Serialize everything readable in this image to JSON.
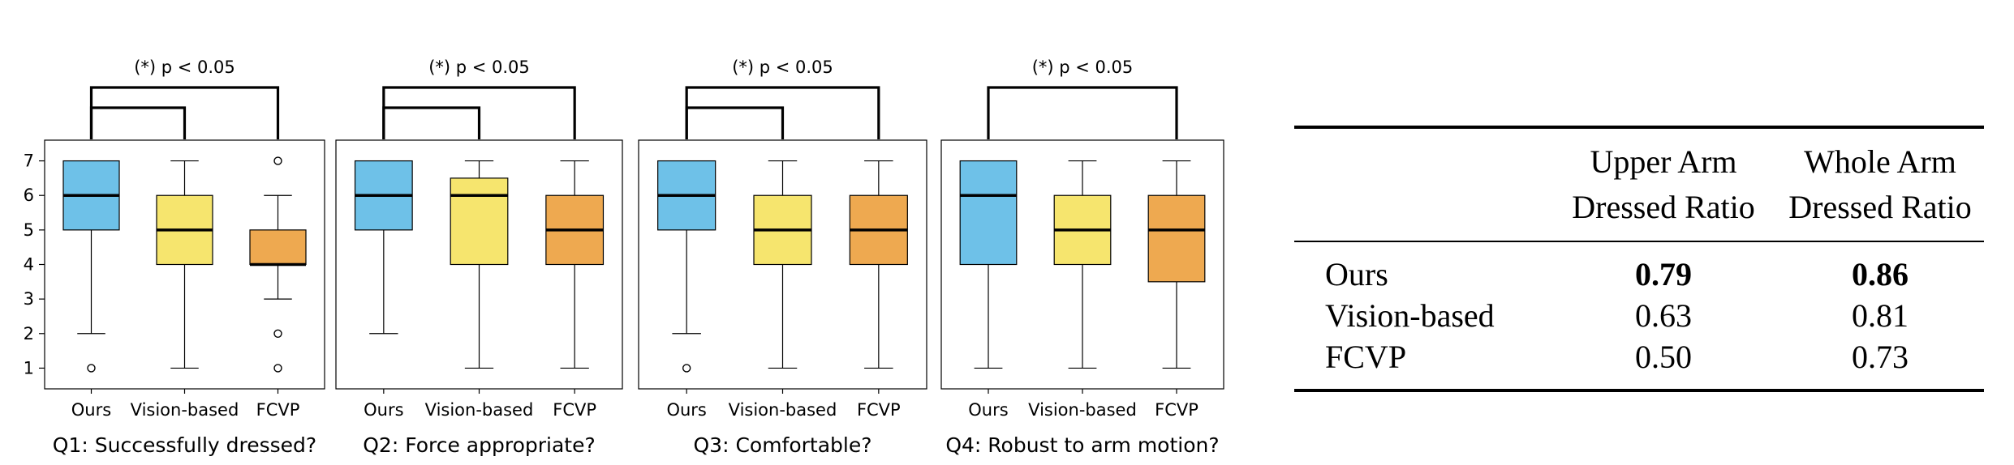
{
  "chart_data": [
    {
      "type": "box",
      "title": "Q1: Successfully dressed?",
      "significance": "(*) p < 0.05",
      "brackets": [
        [
          "Ours",
          "Vision-based"
        ],
        [
          "Ours",
          "FCVP"
        ]
      ],
      "categories": [
        "Ours",
        "Vision-based",
        "FCVP"
      ],
      "colors": [
        "#6ec1e8",
        "#f6e56e",
        "#eea950"
      ],
      "boxes": [
        {
          "whislo": 2,
          "q1": 5,
          "med": 6,
          "q3": 7,
          "whishi": 7,
          "fliers": [
            1
          ]
        },
        {
          "whislo": 1,
          "q1": 4,
          "med": 5,
          "q3": 6,
          "whishi": 7,
          "fliers": []
        },
        {
          "whislo": 3,
          "q1": 4,
          "med": 4,
          "q3": 5,
          "whishi": 6,
          "fliers": [
            7,
            2,
            1
          ]
        }
      ],
      "yticks": [
        1,
        2,
        3,
        4,
        5,
        6,
        7
      ],
      "ylim": [
        0.4,
        7.6
      ]
    },
    {
      "type": "box",
      "title": "Q2: Force appropriate?",
      "significance": "(*) p < 0.05",
      "brackets": [
        [
          "Ours",
          "Vision-based"
        ],
        [
          "Ours",
          "FCVP"
        ]
      ],
      "categories": [
        "Ours",
        "Vision-based",
        "FCVP"
      ],
      "colors": [
        "#6ec1e8",
        "#f6e56e",
        "#eea950"
      ],
      "boxes": [
        {
          "whislo": 2,
          "q1": 5,
          "med": 6,
          "q3": 7,
          "whishi": 7,
          "fliers": []
        },
        {
          "whislo": 1,
          "q1": 4,
          "med": 6,
          "q3": 6.5,
          "whishi": 7,
          "fliers": []
        },
        {
          "whislo": 1,
          "q1": 4,
          "med": 5,
          "q3": 6,
          "whishi": 7,
          "fliers": []
        }
      ],
      "yticks": [
        1,
        2,
        3,
        4,
        5,
        6,
        7
      ],
      "ylim": [
        0.4,
        7.6
      ]
    },
    {
      "type": "box",
      "title": "Q3: Comfortable?",
      "significance": "(*) p < 0.05",
      "brackets": [
        [
          "Ours",
          "Vision-based"
        ],
        [
          "Ours",
          "FCVP"
        ]
      ],
      "categories": [
        "Ours",
        "Vision-based",
        "FCVP"
      ],
      "colors": [
        "#6ec1e8",
        "#f6e56e",
        "#eea950"
      ],
      "boxes": [
        {
          "whislo": 2,
          "q1": 5,
          "med": 6,
          "q3": 7,
          "whishi": 7,
          "fliers": [
            1
          ]
        },
        {
          "whislo": 1,
          "q1": 4,
          "med": 5,
          "q3": 6,
          "whishi": 7,
          "fliers": []
        },
        {
          "whislo": 1,
          "q1": 4,
          "med": 5,
          "q3": 6,
          "whishi": 7,
          "fliers": []
        }
      ],
      "yticks": [
        1,
        2,
        3,
        4,
        5,
        6,
        7
      ],
      "ylim": [
        0.4,
        7.6
      ]
    },
    {
      "type": "box",
      "title": "Q4: Robust to arm motion?",
      "significance": "(*) p < 0.05",
      "brackets": [
        [
          "Ours",
          "FCVP"
        ]
      ],
      "categories": [
        "Ours",
        "Vision-based",
        "FCVP"
      ],
      "colors": [
        "#6ec1e8",
        "#f6e56e",
        "#eea950"
      ],
      "boxes": [
        {
          "whislo": 1,
          "q1": 4,
          "med": 6,
          "q3": 7,
          "whishi": 7,
          "fliers": []
        },
        {
          "whislo": 1,
          "q1": 4,
          "med": 5,
          "q3": 6,
          "whishi": 7,
          "fliers": []
        },
        {
          "whislo": 1,
          "q1": 3.5,
          "med": 5,
          "q3": 6,
          "whishi": 7,
          "fliers": []
        }
      ],
      "yticks": [
        1,
        2,
        3,
        4,
        5,
        6,
        7
      ],
      "ylim": [
        0.4,
        7.6
      ]
    }
  ],
  "table": {
    "columns": [
      "",
      "Upper Arm Dressed Ratio",
      "Whole Arm Dressed Ratio"
    ],
    "column_lines": [
      [
        "",
        ""
      ],
      [
        "Upper Arm",
        "Dressed Ratio"
      ],
      [
        "Whole Arm",
        "Dressed Ratio"
      ]
    ],
    "rows": [
      {
        "method": "Ours",
        "upper": "0.79",
        "whole": "0.86",
        "bold": true
      },
      {
        "method": "Vision-based",
        "upper": "0.63",
        "whole": "0.81",
        "bold": false
      },
      {
        "method": "FCVP",
        "upper": "0.50",
        "whole": "0.73",
        "bold": false
      }
    ]
  }
}
